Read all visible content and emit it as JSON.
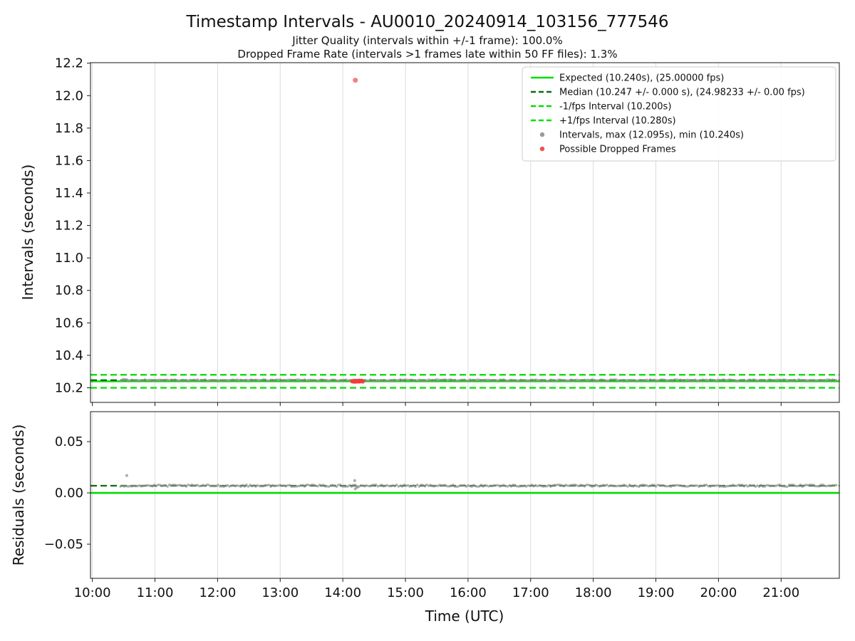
{
  "title": "Timestamp Intervals - AU0010_20240914_103156_777546",
  "subtitle1": "Jitter Quality (intervals within +/-1 frame): 100.0%",
  "subtitle2": "Dropped Frame Rate (intervals >1 frames late within 50 FF files): 1.3%",
  "x_axis": {
    "label": "Time (UTC)",
    "lim": [
      9.97,
      21.93
    ],
    "ticks": [
      {
        "v": 10,
        "label": "10:00"
      },
      {
        "v": 11,
        "label": "11:00"
      },
      {
        "v": 12,
        "label": "12:00"
      },
      {
        "v": 13,
        "label": "13:00"
      },
      {
        "v": 14,
        "label": "14:00"
      },
      {
        "v": 15,
        "label": "15:00"
      },
      {
        "v": 16,
        "label": "16:00"
      },
      {
        "v": 17,
        "label": "17:00"
      },
      {
        "v": 18,
        "label": "18:00"
      },
      {
        "v": 19,
        "label": "19:00"
      },
      {
        "v": 20,
        "label": "20:00"
      },
      {
        "v": 21,
        "label": "21:00"
      }
    ]
  },
  "colors": {
    "expected_green": "#00dd00",
    "median_dark_green": "#0e6b0e",
    "interval_gray": "#8f8f8f",
    "dropped_red": "#f23b3b",
    "grid": "#dcdcdc",
    "spine": "#1a1a1a"
  },
  "chart_data": [
    {
      "name": "intervals",
      "type": "scatter",
      "ylabel": "Intervals (seconds)",
      "ylim": [
        10.11,
        12.203
      ],
      "yticks": [
        {
          "v": 10.2,
          "label": "10.2"
        },
        {
          "v": 10.4,
          "label": "10.4"
        },
        {
          "v": 10.6,
          "label": "10.6"
        },
        {
          "v": 10.8,
          "label": "10.8"
        },
        {
          "v": 11.0,
          "label": "11.0"
        },
        {
          "v": 11.2,
          "label": "11.2"
        },
        {
          "v": 11.4,
          "label": "11.4"
        },
        {
          "v": 11.6,
          "label": "11.6"
        },
        {
          "v": 11.8,
          "label": "11.8"
        },
        {
          "v": 12.0,
          "label": "12.0"
        },
        {
          "v": 12.2,
          "label": "12.2"
        }
      ],
      "hlines": [
        {
          "y": 10.28,
          "style": "dashed",
          "color": "#00dd00",
          "width": 2.2,
          "label": "+1/fps Interval (10.280s)"
        },
        {
          "y": 10.2,
          "style": "dashed",
          "color": "#00dd00",
          "width": 2.2,
          "label": "-1/fps Interval (10.200s)"
        },
        {
          "y": 10.24,
          "style": "solid",
          "color": "#00dd00",
          "width": 2.6,
          "label": "Expected (10.240s), (25.00000 fps)"
        },
        {
          "y": 10.247,
          "style": "dashed",
          "color": "#0e6b0e",
          "width": 2.2,
          "label": "Median (10.247 +/- 0.000 s), (24.98233 +/- 0.00 fps)"
        }
      ],
      "points": {
        "gray": {
          "band_start": 10.45,
          "band_end": 21.9,
          "band_y": 10.247,
          "jitter": 0.004,
          "step": 0.03,
          "extra": [
            [
              10.5,
              10.252
            ],
            [
              10.55,
              10.248
            ]
          ]
        },
        "red": {
          "cluster_start": 14.15,
          "cluster_end": 14.32,
          "cluster_y": 10.24,
          "outliers": [
            [
              14.2,
              12.095
            ]
          ]
        }
      }
    },
    {
      "name": "residuals",
      "type": "scatter",
      "ylabel": "Residuals (seconds)",
      "ylim": [
        -0.0833,
        0.0792
      ],
      "yticks": [
        {
          "v": -0.05,
          "label": "−0.05"
        },
        {
          "v": 0.0,
          "label": "0.00"
        },
        {
          "v": 0.05,
          "label": "0.05"
        }
      ],
      "hlines": [
        {
          "y": 0.007,
          "style": "dashed",
          "color": "#0e6b0e",
          "width": 2.2,
          "label": "Median residual"
        },
        {
          "y": 0.0,
          "style": "solid",
          "color": "#00dd00",
          "width": 2.6,
          "label": "Zero residual"
        }
      ],
      "points": {
        "gray": {
          "band_start": 10.45,
          "band_end": 21.9,
          "band_y": 0.007,
          "jitter": 0.0009,
          "step": 0.03,
          "extra": [
            [
              10.55,
              0.017
            ],
            [
              14.19,
              0.012
            ],
            [
              14.2,
              0.004
            ],
            [
              14.23,
              0.0055
            ]
          ]
        }
      }
    }
  ],
  "legend": [
    {
      "type": "line",
      "dash": "solid",
      "color": "#00dd00",
      "label": "Expected (10.240s), (25.00000 fps)"
    },
    {
      "type": "line",
      "dash": "dashed",
      "color": "#0e6b0e",
      "label": "Median (10.247 +/- 0.000 s), (24.98233 +/- 0.00 fps)"
    },
    {
      "type": "line",
      "dash": "dashed",
      "color": "#00dd00",
      "label": "-1/fps Interval (10.200s)"
    },
    {
      "type": "line",
      "dash": "dashed",
      "color": "#00dd00",
      "label": "+1/fps Interval (10.280s)"
    },
    {
      "type": "dot",
      "color": "#9a9a9a",
      "label": "Intervals, max (12.095s), min (10.240s)"
    },
    {
      "type": "dot",
      "color": "#f05050",
      "label": "Possible Dropped Frames"
    }
  ]
}
